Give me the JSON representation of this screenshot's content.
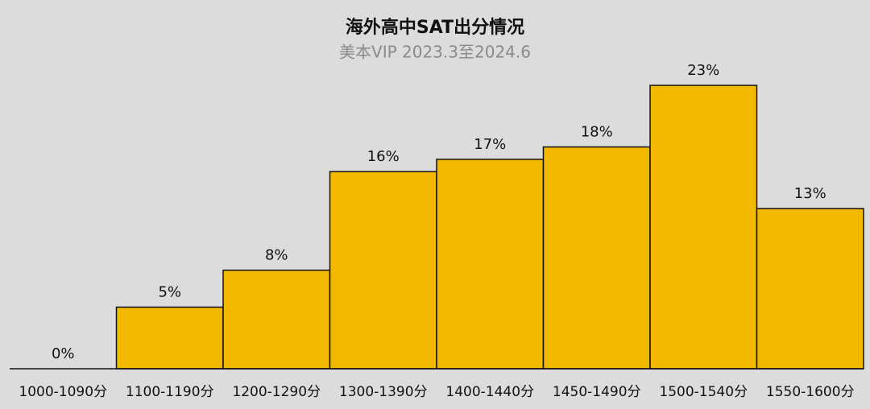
{
  "chart_data": {
    "type": "bar",
    "title": "海外高中SAT出分情况",
    "subtitle": "美本VIP 2023.3至2024.6",
    "categories": [
      "1000-1090分",
      "1100-1190分",
      "1200-1290分",
      "1300-1390分",
      "1400-1440分",
      "1450-1490分",
      "1500-1540分",
      "1550-1600分"
    ],
    "values": [
      0,
      5,
      8,
      16,
      17,
      18,
      23,
      13
    ],
    "value_labels": [
      "0%",
      "5%",
      "8%",
      "16%",
      "17%",
      "18%",
      "23%",
      "13%"
    ],
    "color": "#f2b900"
  }
}
